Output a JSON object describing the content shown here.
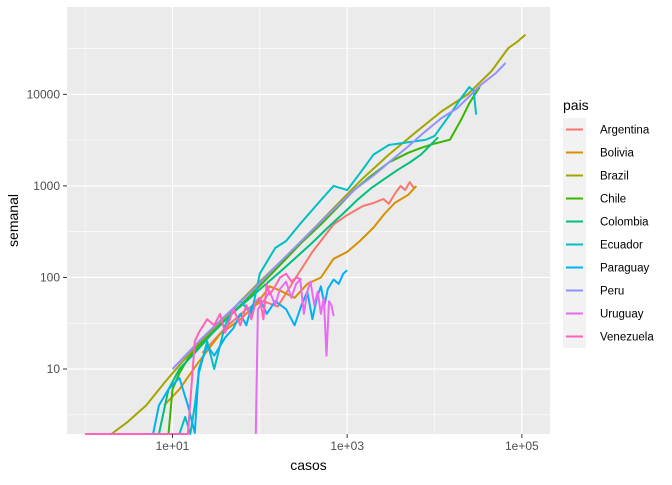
{
  "chart_data": {
    "type": "line",
    "xlabel": "casos",
    "ylabel": "semanal",
    "x_scale": "log10",
    "y_scale": "log10",
    "xlim": [
      0.62,
      210000
    ],
    "ylim": [
      1.95,
      90000
    ],
    "x_ticks": [
      {
        "value": 10,
        "label": "1e+01"
      },
      {
        "value": 1000,
        "label": "1e+03"
      },
      {
        "value": 100000,
        "label": "1e+05"
      }
    ],
    "y_ticks": [
      {
        "value": 10,
        "label": "10"
      },
      {
        "value": 100,
        "label": "100"
      },
      {
        "value": 1000,
        "label": "1000"
      },
      {
        "value": 10000,
        "label": "10000"
      }
    ],
    "grid": true,
    "legend": {
      "title": "pais",
      "position": "right"
    },
    "series": [
      {
        "name": "Argentina",
        "color": "#F8766D",
        "points": [
          [
            22,
            15
          ],
          [
            40,
            28
          ],
          [
            70,
            45
          ],
          [
            110,
            55
          ],
          [
            160,
            48
          ],
          [
            250,
            95
          ],
          [
            400,
            190
          ],
          [
            700,
            380
          ],
          [
            1000,
            480
          ],
          [
            1500,
            600
          ],
          [
            2000,
            650
          ],
          [
            2600,
            720
          ],
          [
            3000,
            640
          ],
          [
            3600,
            850
          ],
          [
            4100,
            1000
          ],
          [
            4600,
            900
          ],
          [
            5200,
            1100
          ],
          [
            5800,
            950
          ]
        ]
      },
      {
        "name": "Bolivia",
        "color": "#D89000",
        "points": [
          [
            8,
            4
          ],
          [
            12,
            6
          ],
          [
            20,
            12
          ],
          [
            35,
            24
          ],
          [
            60,
            35
          ],
          [
            90,
            50
          ],
          [
            130,
            80
          ],
          [
            180,
            70
          ],
          [
            250,
            60
          ],
          [
            350,
            85
          ],
          [
            500,
            100
          ],
          [
            700,
            160
          ],
          [
            1000,
            190
          ],
          [
            1400,
            250
          ],
          [
            2000,
            350
          ],
          [
            2700,
            500
          ],
          [
            3500,
            650
          ],
          [
            5000,
            800
          ],
          [
            6200,
            1000
          ]
        ]
      },
      {
        "name": "Brazil",
        "color": "#A3A500",
        "points": [
          [
            1,
            1.95
          ],
          [
            2,
            1.95
          ],
          [
            3,
            2.6
          ],
          [
            5,
            4
          ],
          [
            8,
            7
          ],
          [
            12,
            11
          ],
          [
            20,
            19
          ],
          [
            35,
            32
          ],
          [
            60,
            55
          ],
          [
            100,
            90
          ],
          [
            200,
            170
          ],
          [
            400,
            330
          ],
          [
            800,
            650
          ],
          [
            1500,
            1200
          ],
          [
            3000,
            2200
          ],
          [
            6000,
            3800
          ],
          [
            12000,
            6500
          ],
          [
            24000,
            10000
          ],
          [
            45000,
            18000
          ],
          [
            70000,
            32000
          ],
          [
            90000,
            38000
          ],
          [
            110000,
            45000
          ]
        ]
      },
      {
        "name": "Chile",
        "color": "#39B600",
        "points": [
          [
            9,
            1.95
          ],
          [
            10,
            6
          ],
          [
            12,
            9
          ],
          [
            15,
            13
          ],
          [
            20,
            18
          ],
          [
            30,
            26
          ],
          [
            50,
            42
          ],
          [
            80,
            65
          ],
          [
            130,
            105
          ],
          [
            200,
            160
          ],
          [
            300,
            240
          ],
          [
            500,
            380
          ],
          [
            800,
            600
          ],
          [
            1200,
            900
          ],
          [
            1800,
            1250
          ],
          [
            3000,
            1800
          ],
          [
            5000,
            2300
          ],
          [
            7000,
            2600
          ],
          [
            10000,
            2900
          ],
          [
            15000,
            3200
          ],
          [
            20000,
            5200
          ],
          [
            25000,
            8000
          ],
          [
            30000,
            10500
          ],
          [
            33000,
            12000
          ]
        ]
      },
      {
        "name": "Colombia",
        "color": "#00BF7D",
        "points": [
          [
            7,
            1.95
          ],
          [
            9,
            6
          ],
          [
            12,
            10
          ],
          [
            18,
            15
          ],
          [
            28,
            24
          ],
          [
            45,
            38
          ],
          [
            70,
            55
          ],
          [
            110,
            80
          ],
          [
            170,
            115
          ],
          [
            250,
            160
          ],
          [
            400,
            240
          ],
          [
            600,
            350
          ],
          [
            900,
            500
          ],
          [
            1300,
            700
          ],
          [
            1900,
            950
          ],
          [
            2700,
            1200
          ],
          [
            3800,
            1500
          ],
          [
            5200,
            1800
          ],
          [
            7000,
            2200
          ],
          [
            9000,
            2800
          ],
          [
            11000,
            3400
          ]
        ]
      },
      {
        "name": "Ecuador",
        "color": "#00BFC4",
        "points": [
          [
            10,
            1.95
          ],
          [
            12,
            1.95
          ],
          [
            14,
            3
          ],
          [
            16,
            1.95
          ],
          [
            18,
            4
          ],
          [
            20,
            9
          ],
          [
            25,
            20
          ],
          [
            30,
            10
          ],
          [
            40,
            30
          ],
          [
            50,
            45
          ],
          [
            60,
            55
          ],
          [
            80,
            40
          ],
          [
            100,
            110
          ],
          [
            150,
            210
          ],
          [
            200,
            250
          ],
          [
            300,
            400
          ],
          [
            500,
            700
          ],
          [
            700,
            1000
          ],
          [
            1000,
            900
          ],
          [
            1500,
            1500
          ],
          [
            2000,
            2200
          ],
          [
            3000,
            2800
          ],
          [
            5000,
            3000
          ],
          [
            8000,
            3200
          ],
          [
            10000,
            3500
          ],
          [
            15000,
            6000
          ],
          [
            20000,
            9000
          ],
          [
            25000,
            12000
          ],
          [
            28000,
            11000
          ],
          [
            30000,
            6000
          ]
        ]
      },
      {
        "name": "Paraguay",
        "color": "#00B0F6",
        "points": [
          [
            6,
            1.95
          ],
          [
            7,
            4
          ],
          [
            9,
            6
          ],
          [
            12,
            8
          ],
          [
            15,
            4
          ],
          [
            18,
            2
          ],
          [
            20,
            10
          ],
          [
            25,
            18
          ],
          [
            30,
            14
          ],
          [
            40,
            22
          ],
          [
            50,
            28
          ],
          [
            60,
            40
          ],
          [
            70,
            30
          ],
          [
            80,
            48
          ],
          [
            100,
            60
          ],
          [
            120,
            40
          ],
          [
            150,
            55
          ],
          [
            200,
            45
          ],
          [
            250,
            30
          ],
          [
            300,
            50
          ],
          [
            350,
            70
          ],
          [
            400,
            35
          ],
          [
            450,
            60
          ],
          [
            500,
            80
          ],
          [
            550,
            50
          ],
          [
            600,
            75
          ],
          [
            700,
            95
          ],
          [
            800,
            85
          ],
          [
            900,
            110
          ],
          [
            1000,
            120
          ]
        ]
      },
      {
        "name": "Peru",
        "color": "#9590FF",
        "points": [
          [
            10,
            10
          ],
          [
            20,
            20
          ],
          [
            40,
            38
          ],
          [
            80,
            70
          ],
          [
            150,
            130
          ],
          [
            300,
            250
          ],
          [
            600,
            480
          ],
          [
            1200,
            900
          ],
          [
            2000,
            1300
          ],
          [
            3000,
            1800
          ],
          [
            5000,
            2700
          ],
          [
            8000,
            4000
          ],
          [
            12000,
            5500
          ],
          [
            18000,
            7000
          ],
          [
            25000,
            9500
          ],
          [
            35000,
            13000
          ],
          [
            50000,
            17000
          ],
          [
            65000,
            22000
          ]
        ]
      },
      {
        "name": "Uruguay",
        "color": "#E76BF3",
        "points": [
          [
            90,
            1.95
          ],
          [
            95,
            45
          ],
          [
            110,
            55
          ],
          [
            130,
            70
          ],
          [
            150,
            50
          ],
          [
            170,
            75
          ],
          [
            200,
            90
          ],
          [
            230,
            60
          ],
          [
            260,
            85
          ],
          [
            290,
            95
          ],
          [
            320,
            40
          ],
          [
            350,
            70
          ],
          [
            380,
            90
          ],
          [
            420,
            50
          ],
          [
            460,
            70
          ],
          [
            500,
            40
          ],
          [
            540,
            60
          ],
          [
            580,
            14
          ],
          [
            620,
            55
          ],
          [
            660,
            50
          ],
          [
            700,
            38
          ]
        ]
      },
      {
        "name": "Venezuela",
        "color": "#FF62BC",
        "points": [
          [
            1,
            1.95
          ],
          [
            15,
            1.95
          ],
          [
            18,
            20
          ],
          [
            20,
            25
          ],
          [
            25,
            35
          ],
          [
            30,
            30
          ],
          [
            35,
            40
          ],
          [
            40,
            25
          ],
          [
            50,
            45
          ],
          [
            60,
            30
          ],
          [
            70,
            50
          ],
          [
            80,
            35
          ],
          [
            90,
            55
          ],
          [
            100,
            60
          ],
          [
            110,
            35
          ],
          [
            120,
            85
          ],
          [
            130,
            65
          ],
          [
            150,
            80
          ],
          [
            170,
            100
          ],
          [
            200,
            110
          ],
          [
            230,
            90
          ],
          [
            260,
            100
          ],
          [
            300,
            95
          ]
        ]
      }
    ]
  }
}
